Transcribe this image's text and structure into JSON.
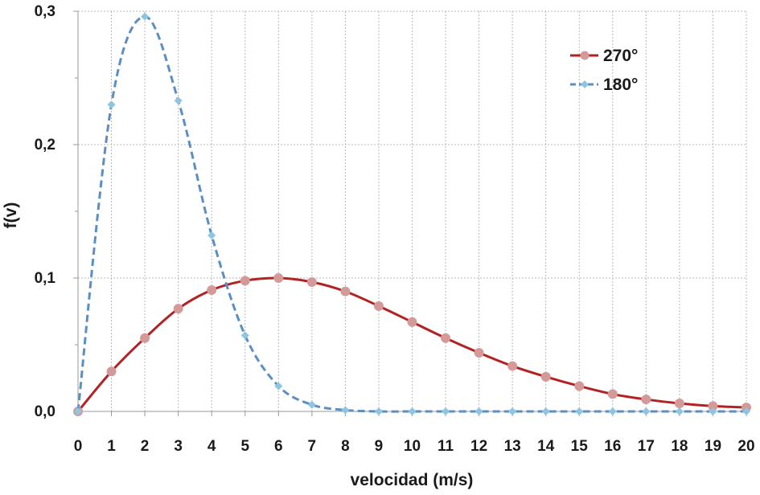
{
  "chart_data": {
    "type": "line",
    "xlabel": "velocidad (m/s)",
    "ylabel": "f(v)",
    "x": [
      0,
      1,
      2,
      3,
      4,
      5,
      6,
      7,
      8,
      9,
      10,
      11,
      12,
      13,
      14,
      15,
      16,
      17,
      18,
      19,
      20
    ],
    "xlim": [
      0,
      20
    ],
    "ylim": [
      0,
      0.3
    ],
    "y_ticks": [
      0,
      0.1,
      0.2,
      0.3
    ],
    "y_tick_labels": [
      "0,0",
      "0,1",
      "0,2",
      "0,3"
    ],
    "grid": true,
    "legend_position": "top-right",
    "series": [
      {
        "name": "270°",
        "color": "#b22222",
        "marker_color": "#d49a9a",
        "line_style": "solid",
        "marker": "circle",
        "values": [
          0.0,
          0.03,
          0.055,
          0.077,
          0.091,
          0.098,
          0.1,
          0.097,
          0.09,
          0.079,
          0.067,
          0.055,
          0.044,
          0.034,
          0.026,
          0.019,
          0.013,
          0.009,
          0.006,
          0.004,
          0.003
        ]
      },
      {
        "name": "180°",
        "color": "#5b8fc4",
        "marker_color": "#8ec5e0",
        "line_style": "dashed",
        "marker": "diamond",
        "values": [
          0.0,
          0.23,
          0.296,
          0.233,
          0.132,
          0.057,
          0.019,
          0.005,
          0.001,
          0.0,
          0.0,
          0.0,
          0.0,
          0.0,
          0.0,
          0.0,
          0.0,
          0.0,
          0.0,
          0.0,
          0.0
        ]
      }
    ]
  }
}
